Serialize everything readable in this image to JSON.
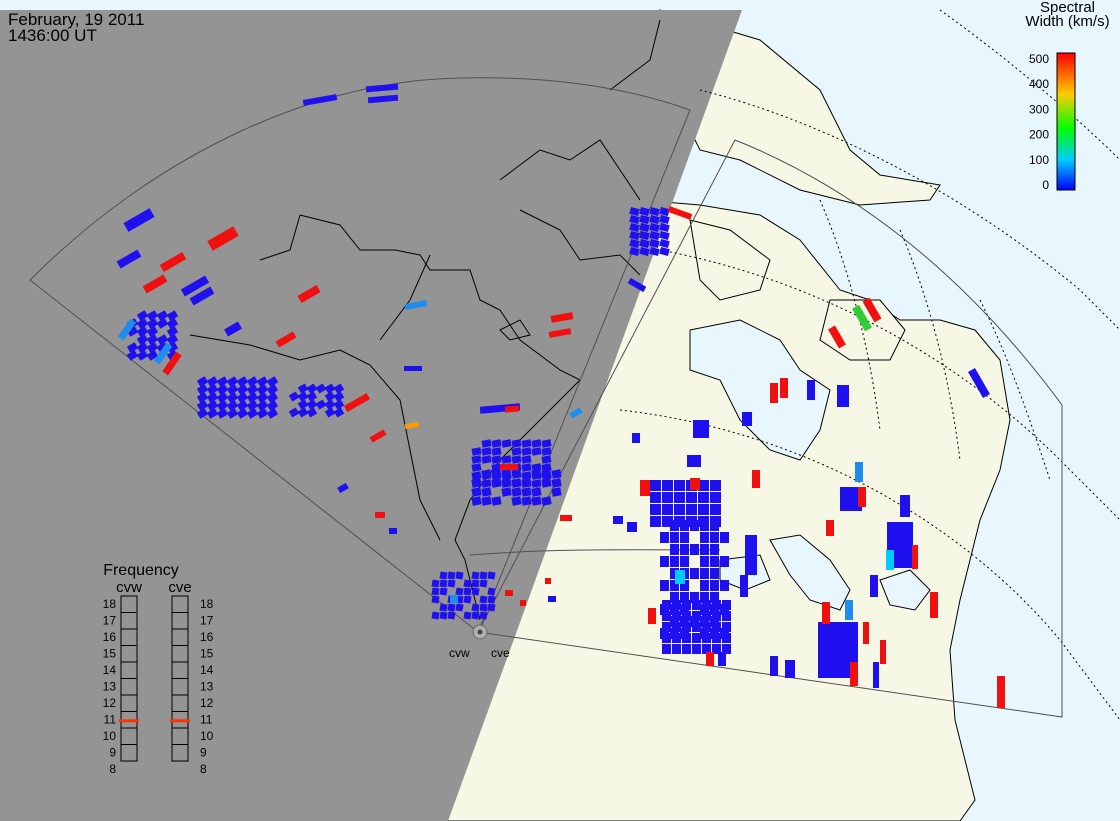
{
  "header": {
    "date": "February, 19 2011",
    "time": "1436:00 UT"
  },
  "colorbar": {
    "title_line1": "Spectral",
    "title_line2": "Width (km/s)",
    "ticks": [
      "500",
      "400",
      "300",
      "200",
      "100",
      "0"
    ],
    "stops": [
      "#0000ff",
      "#00ccff",
      "#00ff00",
      "#ffcc00",
      "#ff0000"
    ]
  },
  "frequency": {
    "title": "Frequency",
    "radars": [
      "cvw",
      "cve"
    ],
    "scale": [
      "18",
      "17",
      "16",
      "15",
      "14",
      "13",
      "12",
      "11",
      "10",
      "9",
      "8"
    ],
    "cvw_mhz": 10.8,
    "cve_mhz": 10.8
  },
  "radar_labels": [
    "cvw",
    "cve"
  ],
  "colors": {
    "night": "#949494",
    "land": "#f7f7e6",
    "ocean": "#e8f6fd",
    "low": "#1f10f0",
    "mid": "#1f8cf0",
    "high": "#f01010",
    "marker": "#ff3300"
  }
}
